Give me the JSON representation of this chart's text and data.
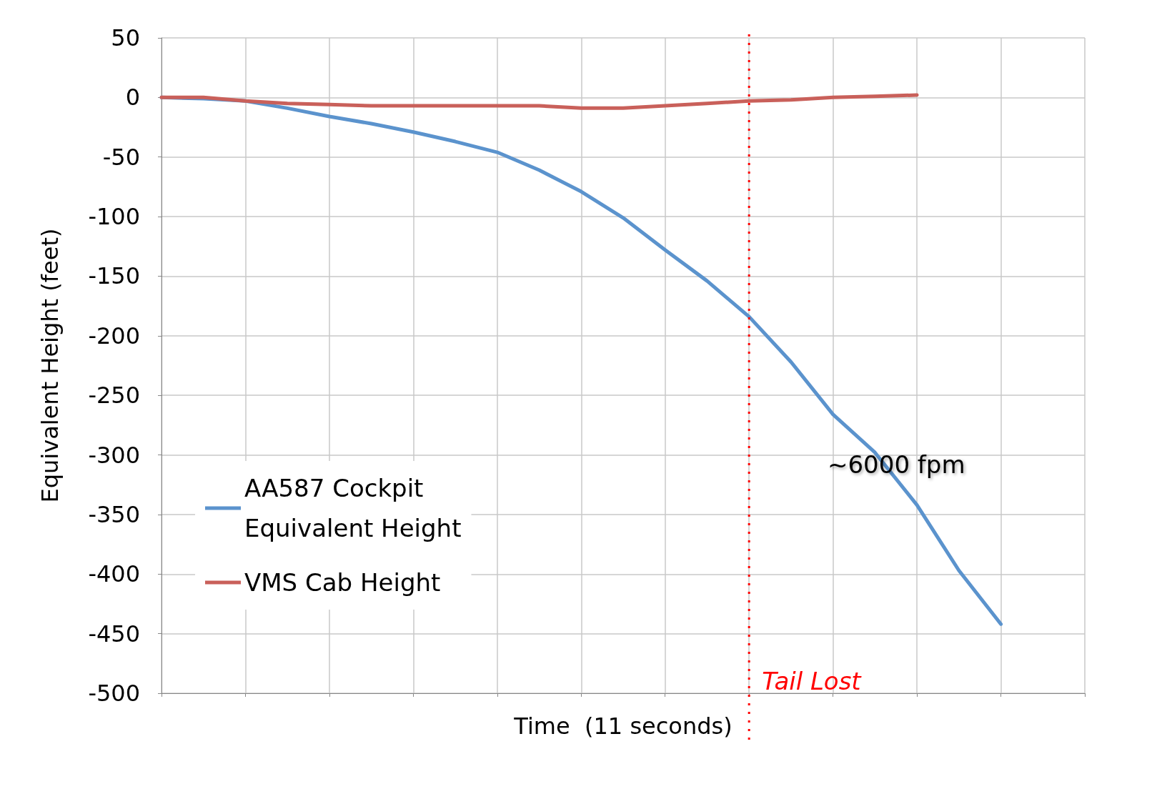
{
  "chart_data": {
    "type": "line",
    "xlabel": "Time  (11 seconds)",
    "ylabel": "Equivalent Height (feet)",
    "categories": [
      null,
      null,
      null,
      null,
      null,
      null,
      null,
      null,
      null,
      null,
      null,
      null,
      null,
      null,
      null,
      null,
      null,
      null,
      null,
      null,
      null,
      null,
      null
    ],
    "ylim": [
      -500,
      50
    ],
    "yticks": [
      -500,
      -450,
      -400,
      -350,
      -300,
      -250,
      -200,
      -150,
      -100,
      -50,
      0,
      50
    ],
    "grid": true,
    "legend": "bottom left",
    "marker": "none",
    "line_style": "solid",
    "series": [
      {
        "name": "AA587 Cockpit\nEquivalent Height",
        "color": "#5b93cd",
        "values": [
          0,
          -1,
          -3,
          -9,
          -16,
          -22,
          -29,
          -37,
          -46,
          -61,
          -79,
          -101,
          -128,
          -154,
          -184,
          -222,
          -266,
          -298,
          -342,
          -397,
          -442,
          null,
          null
        ]
      },
      {
        "name": "VMS Cab Height",
        "color": "#c9605a",
        "values": [
          0,
          0,
          -3,
          -5,
          -6,
          -7,
          -7,
          -7,
          -7,
          -7,
          -9,
          -9,
          -7,
          -5,
          -3,
          -2,
          0,
          1,
          2,
          null,
          null,
          null,
          null
        ]
      }
    ],
    "annotations": [
      "~6000 fpm",
      "Tail Lost"
    ]
  }
}
